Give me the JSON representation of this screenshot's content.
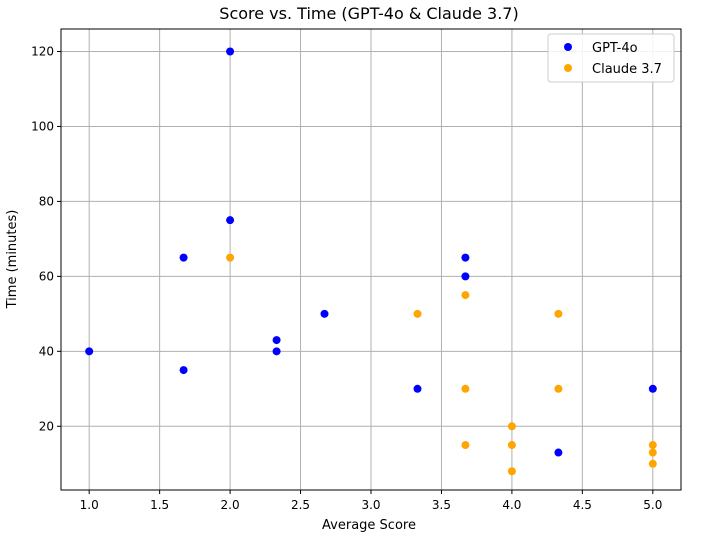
{
  "chart_data": {
    "type": "scatter",
    "title": "Score vs. Time (GPT-4o & Claude 3.7)",
    "xlabel": "Average Score",
    "ylabel": "Time (minutes)",
    "xlim": [
      0.8,
      5.2
    ],
    "ylim": [
      3,
      126
    ],
    "x_ticks": [
      1.0,
      1.5,
      2.0,
      2.5,
      3.0,
      3.5,
      4.0,
      4.5,
      5.0
    ],
    "x_tick_labels": [
      "1.0",
      "1.5",
      "2.0",
      "2.5",
      "3.0",
      "3.5",
      "4.0",
      "4.5",
      "5.0"
    ],
    "y_ticks": [
      20,
      40,
      60,
      80,
      100,
      120
    ],
    "y_tick_labels": [
      "20",
      "40",
      "60",
      "80",
      "100",
      "120"
    ],
    "grid": true,
    "legend_position": "top-right",
    "series": [
      {
        "name": "GPT-4o",
        "color": "#0000ff",
        "points": [
          [
            1.0,
            40
          ],
          [
            1.67,
            65
          ],
          [
            1.67,
            35
          ],
          [
            2.0,
            120
          ],
          [
            2.0,
            75
          ],
          [
            2.33,
            43
          ],
          [
            2.33,
            40
          ],
          [
            2.67,
            50
          ],
          [
            3.33,
            30
          ],
          [
            3.67,
            65
          ],
          [
            3.67,
            60
          ],
          [
            4.33,
            13
          ],
          [
            5.0,
            30
          ]
        ]
      },
      {
        "name": "Claude 3.7",
        "color": "#ffa500",
        "points": [
          [
            2.0,
            65
          ],
          [
            3.33,
            50
          ],
          [
            3.67,
            55
          ],
          [
            3.67,
            30
          ],
          [
            3.67,
            15
          ],
          [
            4.0,
            20
          ],
          [
            4.0,
            15
          ],
          [
            4.0,
            8
          ],
          [
            4.33,
            50
          ],
          [
            4.33,
            30
          ],
          [
            5.0,
            15
          ],
          [
            5.0,
            13
          ],
          [
            5.0,
            10
          ]
        ]
      }
    ]
  }
}
